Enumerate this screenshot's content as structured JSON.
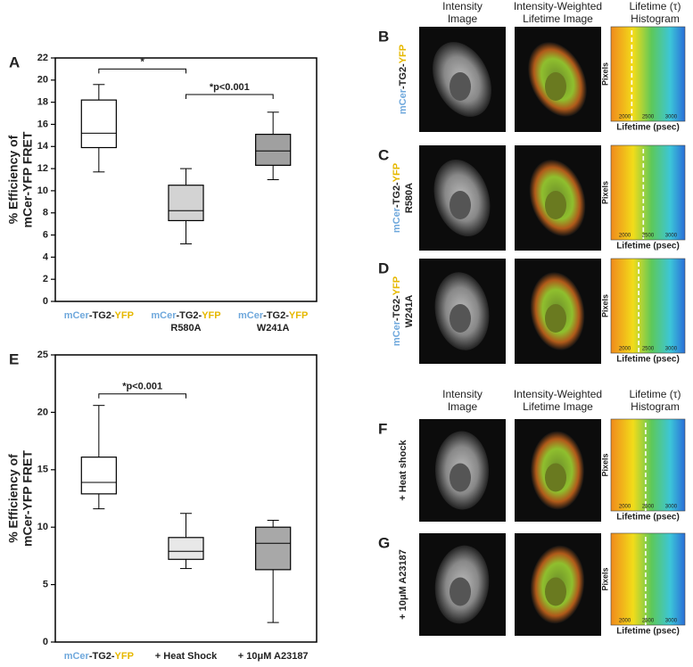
{
  "chart_data": [
    {
      "type": "box",
      "panel": "A",
      "ylabel": [
        "% Efficiency of",
        "mCer-YFP FRET"
      ],
      "ylim": [
        0,
        22
      ],
      "yticks": [
        0,
        2,
        4,
        6,
        8,
        10,
        12,
        14,
        16,
        18,
        20,
        22
      ],
      "categories": [
        {
          "parts": [
            {
              "text": "mCer",
              "color": "#6fa8dc"
            },
            {
              "text": "-TG2-",
              "color": "#222222"
            },
            {
              "text": "YFP",
              "color": "#e6b800"
            }
          ],
          "line2": null
        },
        {
          "parts": [
            {
              "text": "mCer",
              "color": "#6fa8dc"
            },
            {
              "text": "-TG2-",
              "color": "#222222"
            },
            {
              "text": "YFP",
              "color": "#e6b800"
            }
          ],
          "line2": "R580A"
        },
        {
          "parts": [
            {
              "text": "mCer",
              "color": "#6fa8dc"
            },
            {
              "text": "-TG2-",
              "color": "#222222"
            },
            {
              "text": "YFP",
              "color": "#e6b800"
            }
          ],
          "line2": "W241A"
        }
      ],
      "boxes": [
        {
          "min": 11.7,
          "q1": 13.9,
          "median": 15.2,
          "q3": 18.2,
          "max": 19.6,
          "color": "#ffffff"
        },
        {
          "min": 5.2,
          "q1": 7.3,
          "median": 8.2,
          "q3": 10.5,
          "max": 12.0,
          "color": "#d3d3d3"
        },
        {
          "min": 11.0,
          "q1": 12.3,
          "median": 13.6,
          "q3": 15.1,
          "max": 17.1,
          "color": "#a0a0a0"
        }
      ],
      "annotations": [
        {
          "text": "*",
          "between": [
            0,
            1
          ],
          "y": 21.0
        },
        {
          "text": "*p<0.001",
          "between": [
            1,
            2
          ],
          "y": 18.7
        }
      ]
    },
    {
      "type": "box",
      "panel": "E",
      "ylabel": [
        "% Efficiency of",
        "mCer-YFP FRET"
      ],
      "ylim": [
        0,
        25
      ],
      "yticks": [
        0,
        5,
        10,
        15,
        20,
        25
      ],
      "categories": [
        {
          "parts": [
            {
              "text": "mCer",
              "color": "#6fa8dc"
            },
            {
              "text": "-TG2-",
              "color": "#222222"
            },
            {
              "text": "YFP",
              "color": "#e6b800"
            }
          ],
          "line2": null
        },
        {
          "parts": [
            {
              "text": "+ Heat Shock",
              "color": "#222222"
            }
          ],
          "line2": null
        },
        {
          "parts": [
            {
              "text": "+ 10μM A23187",
              "color": "#222222"
            }
          ],
          "line2": null
        }
      ],
      "boxes": [
        {
          "min": 11.6,
          "q1": 12.9,
          "median": 13.9,
          "q3": 16.1,
          "max": 20.6,
          "color": "#ffffff"
        },
        {
          "min": 6.4,
          "q1": 7.2,
          "median": 7.9,
          "q3": 9.1,
          "max": 11.2,
          "color": "#e8e8e8"
        },
        {
          "min": 1.7,
          "q1": 6.3,
          "median": 8.6,
          "q3": 10.0,
          "max": 10.6,
          "color": "#a8a8a8"
        }
      ],
      "annotations": [
        {
          "text": "*p<0.001",
          "between": [
            0,
            1
          ],
          "y": 21.6
        }
      ]
    }
  ],
  "image_panels": {
    "headers": [
      [
        "Intensity",
        "Image"
      ],
      [
        "Intensity-Weighted",
        "Lifetime Image"
      ],
      [
        "Lifetime (τ)",
        "Histogram"
      ]
    ],
    "hist_ylabel": "Pixels",
    "hist_xlabel": "Lifetime (psec)",
    "hist_xlim": [
      1700,
      3300
    ],
    "hist_xticks": [
      2000,
      2500,
      3000
    ],
    "rows": [
      {
        "letter": "B",
        "parts": [
          {
            "text": "mCer",
            "color": "#6fa8dc"
          },
          {
            "text": "-TG2-",
            "color": "#222222"
          },
          {
            "text": "YFP",
            "color": "#e6b800"
          }
        ],
        "line2": null,
        "mean": 2150
      },
      {
        "letter": "C",
        "parts": [
          {
            "text": "mCer",
            "color": "#6fa8dc"
          },
          {
            "text": "-TG2-",
            "color": "#222222"
          },
          {
            "text": "YFP",
            "color": "#e6b800"
          }
        ],
        "line2": "R580A",
        "mean": 2400
      },
      {
        "letter": "D",
        "parts": [
          {
            "text": "mCer",
            "color": "#6fa8dc"
          },
          {
            "text": "-TG2-",
            "color": "#222222"
          },
          {
            "text": "YFP",
            "color": "#e6b800"
          }
        ],
        "line2": "W241A",
        "mean": 2300
      },
      {
        "letter": "F",
        "parts": [
          {
            "text": "+ Heat shock",
            "color": "#222222"
          }
        ],
        "line2": null,
        "mean": 2450
      },
      {
        "letter": "G",
        "parts": [
          {
            "text": "+ 10μM A23187",
            "color": "#222222"
          }
        ],
        "line2": null,
        "mean": 2450
      }
    ]
  }
}
